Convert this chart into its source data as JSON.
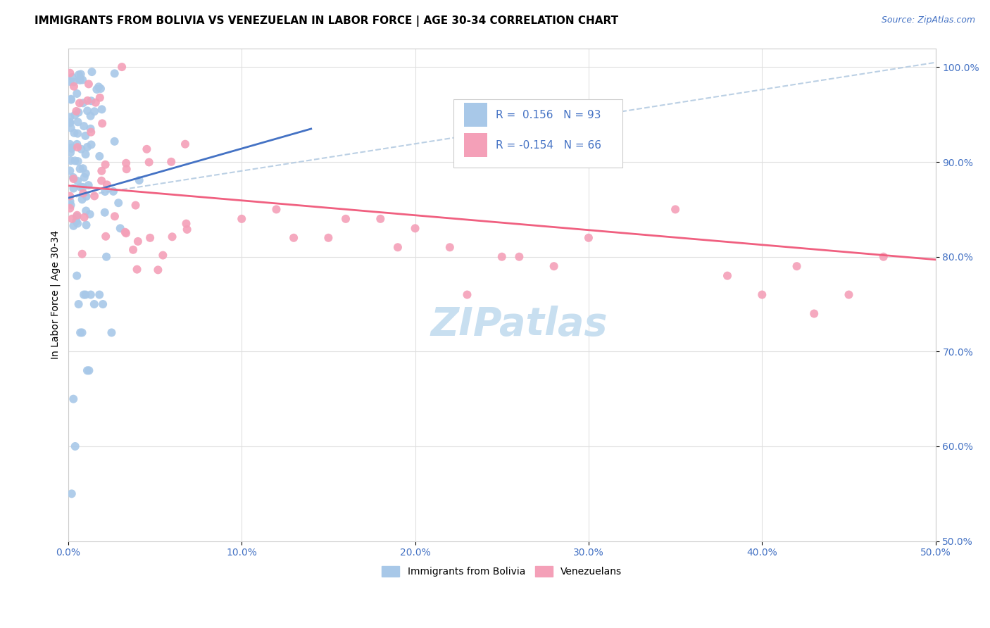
{
  "title": "IMMIGRANTS FROM BOLIVIA VS VENEZUELAN IN LABOR FORCE | AGE 30-34 CORRELATION CHART",
  "source": "Source: ZipAtlas.com",
  "ylabel": "In Labor Force | Age 30-34",
  "xlim": [
    0.0,
    0.5
  ],
  "ylim": [
    0.5,
    1.02
  ],
  "xticks": [
    0.0,
    0.1,
    0.2,
    0.3,
    0.4,
    0.5
  ],
  "yticks": [
    0.5,
    0.6,
    0.7,
    0.8,
    0.9,
    1.0
  ],
  "bolivia_color": "#a8c8e8",
  "venezuela_color": "#f4a0b8",
  "bolivia_line_color": "#4472c4",
  "venezuela_line_color": "#f06080",
  "dashed_line_color": "#b0c8e0",
  "bolivia_R": 0.156,
  "venezuela_R": -0.154,
  "bolivia_N": 93,
  "venezuela_N": 66,
  "watermark": "ZIPatlas",
  "title_fontsize": 11,
  "axis_label_fontsize": 10,
  "tick_fontsize": 10,
  "legend_fontsize": 11,
  "source_fontsize": 9,
  "watermark_fontsize": 40,
  "watermark_color": "#c8dff0",
  "axis_color": "#4472c4",
  "grid_color": "#e0e0e0",
  "legend_box_color": "#f0f0f0"
}
